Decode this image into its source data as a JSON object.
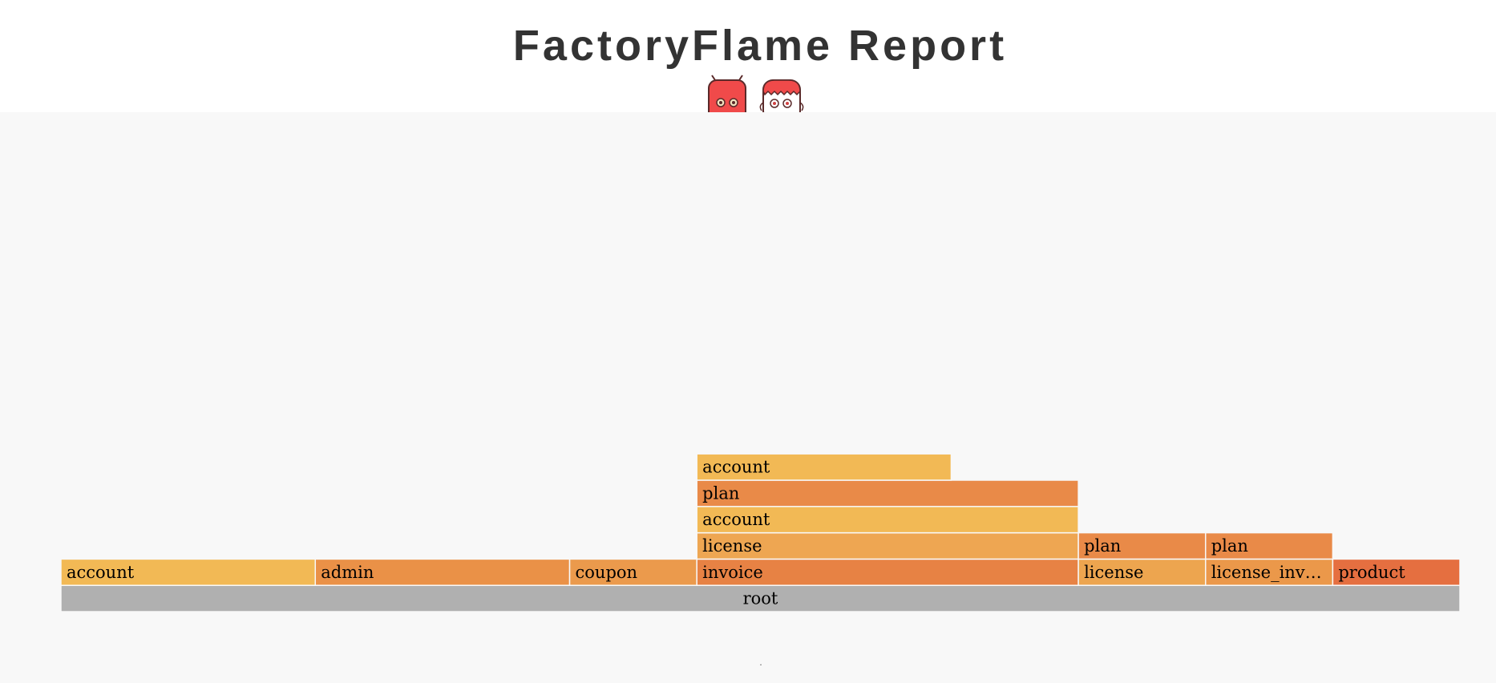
{
  "header": {
    "title": "FactoryFlame Report"
  },
  "footer": {
    "text": "."
  },
  "colors": {
    "background": "#f8f8f8",
    "root": "#b0b0b0",
    "mascot_red": "#f04a4a",
    "mascot_outline": "#5a2a2a"
  },
  "icons": [
    "robot-mascot-icon",
    "monster-mascot-icon"
  ],
  "chart_data": {
    "type": "flamegraph",
    "total": 11,
    "frames": [
      {
        "label": "root",
        "depth": 0,
        "start": 0,
        "value": 11,
        "color": "#b0b0b0"
      },
      {
        "label": "account",
        "depth": 1,
        "start": 0,
        "value": 2,
        "color": "#f2b955"
      },
      {
        "label": "admin",
        "depth": 1,
        "start": 2,
        "value": 2,
        "color": "#ea9147"
      },
      {
        "label": "coupon",
        "depth": 1,
        "start": 4,
        "value": 1,
        "color": "#eb9a4c"
      },
      {
        "label": "invoice",
        "depth": 1,
        "start": 5,
        "value": 3,
        "color": "#e78244"
      },
      {
        "label": "license",
        "depth": 1,
        "start": 8,
        "value": 1,
        "color": "#eda54f"
      },
      {
        "label": "license_inv…",
        "depth": 1,
        "start": 9,
        "value": 1,
        "color": "#eb984a"
      },
      {
        "label": "product",
        "depth": 1,
        "start": 10,
        "value": 1,
        "color": "#e56f40"
      },
      {
        "label": "license",
        "depth": 2,
        "start": 5,
        "value": 3,
        "color": "#eea652"
      },
      {
        "label": "plan",
        "depth": 2,
        "start": 8,
        "value": 1,
        "color": "#e98a48"
      },
      {
        "label": "plan",
        "depth": 2,
        "start": 9,
        "value": 1,
        "color": "#e98a48"
      },
      {
        "label": "account",
        "depth": 3,
        "start": 5,
        "value": 3,
        "color": "#f2b955"
      },
      {
        "label": "plan",
        "depth": 4,
        "start": 5,
        "value": 3,
        "color": "#e98a48"
      },
      {
        "label": "account",
        "depth": 5,
        "start": 5,
        "value": 2,
        "color": "#f2b955"
      }
    ]
  }
}
